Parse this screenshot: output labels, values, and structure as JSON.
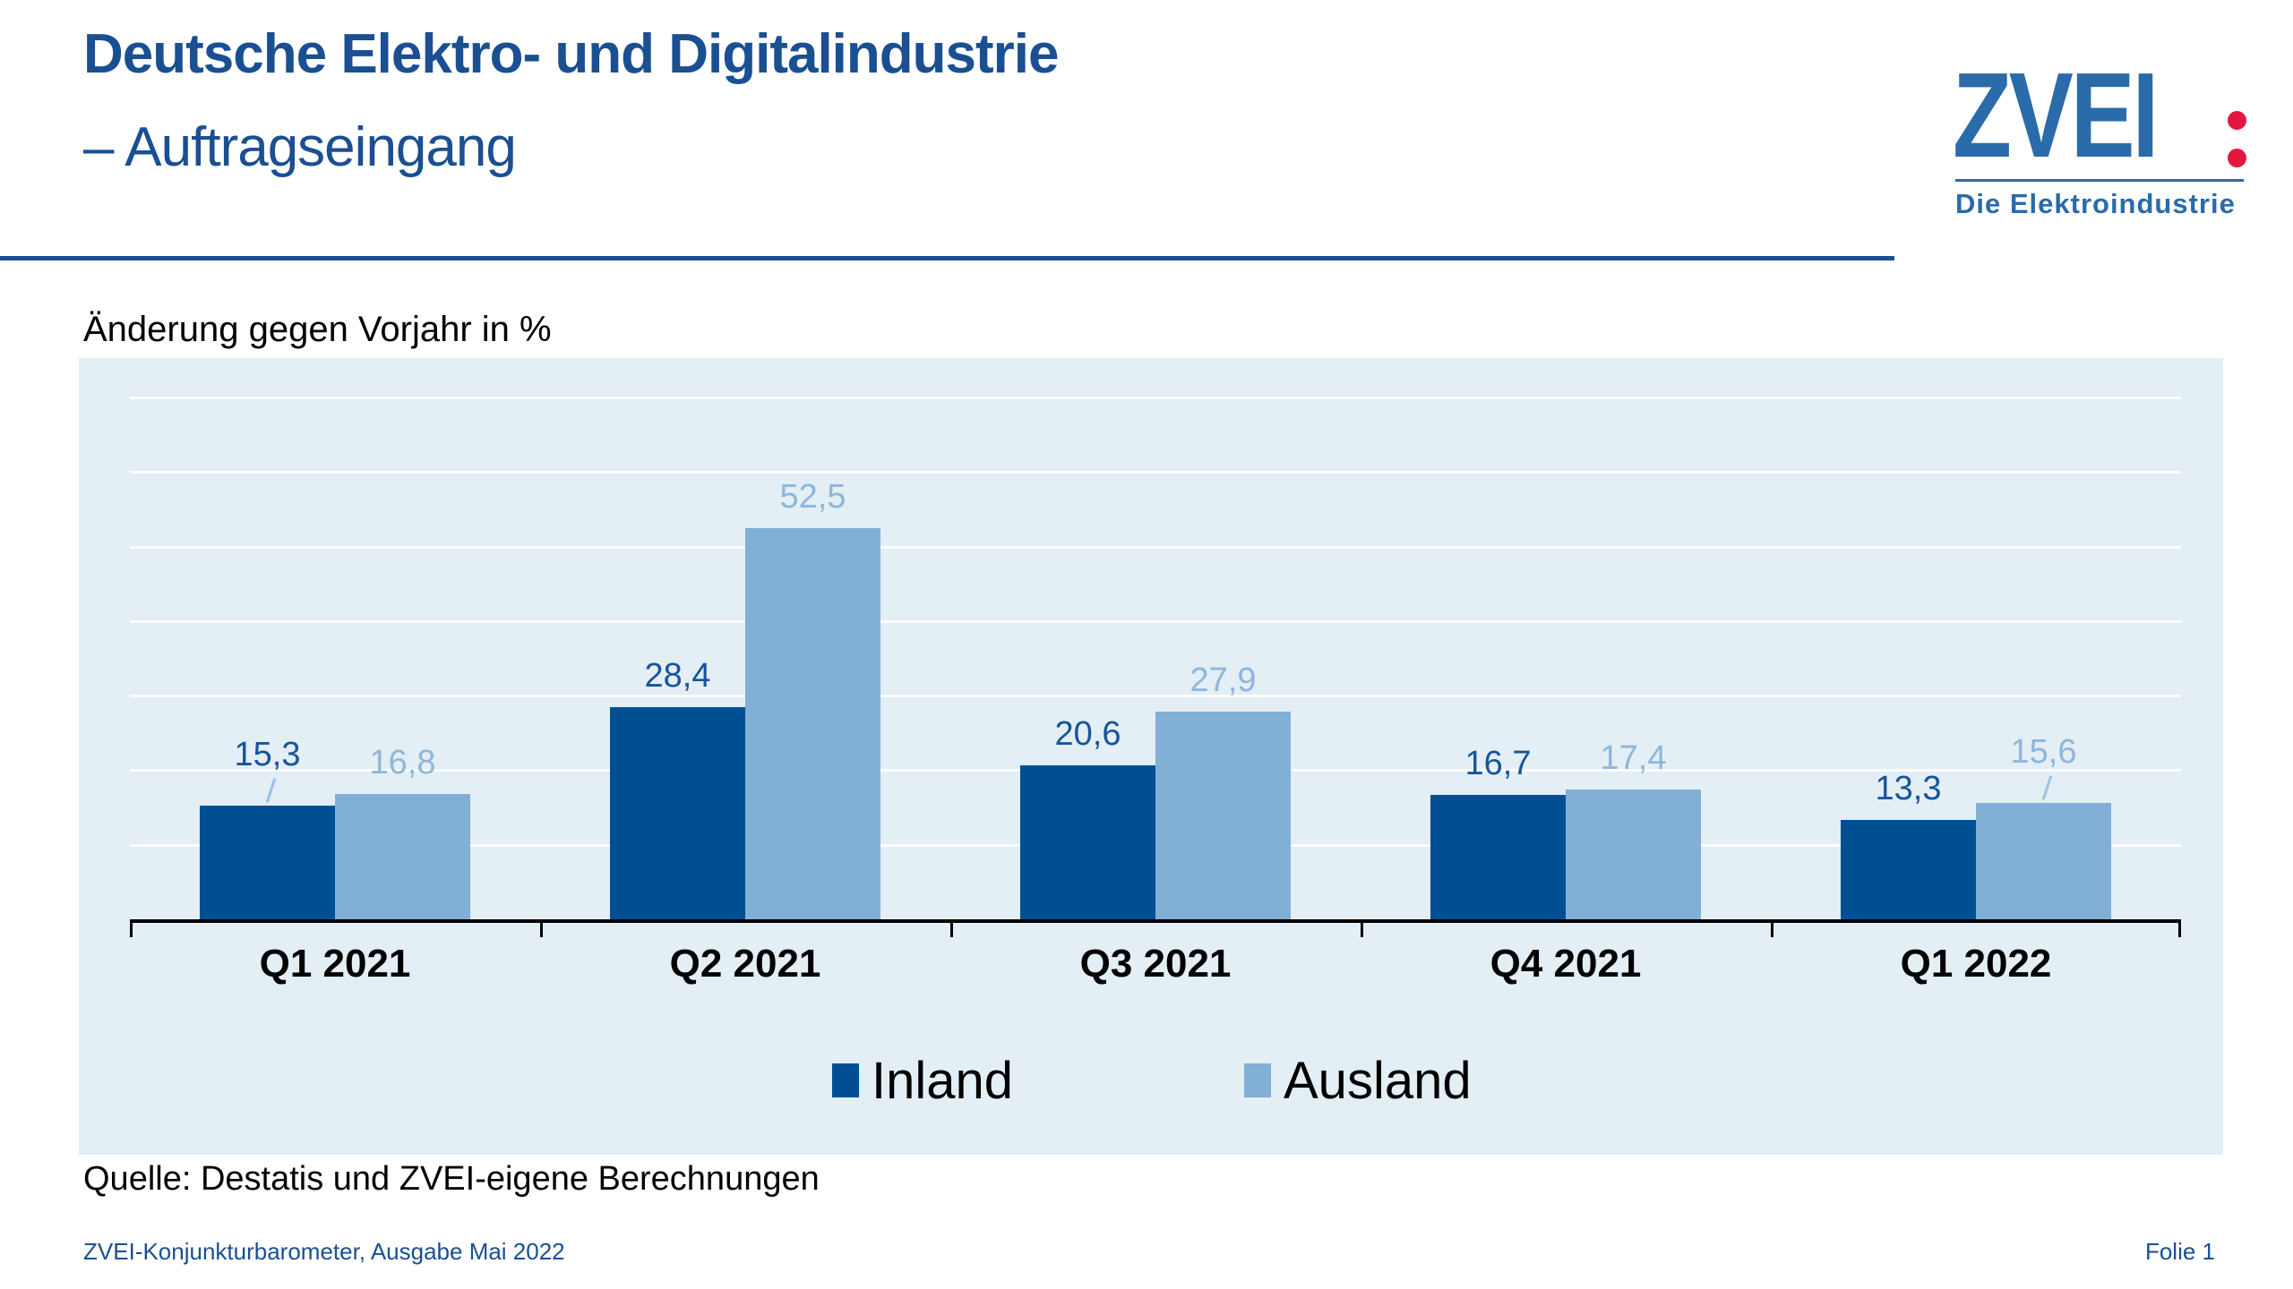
{
  "slide": {
    "title_line1": "Deutsche Elektro- und Digitalindustrie",
    "title_line2": "– Auftragseingang",
    "subtitle": "Änderung gegen Vorjahr in %",
    "source": "Quelle: Destatis und ZVEI-eigene Berechnungen",
    "footer_left": "ZVEI-Konjunkturbarometer, Ausgabe Mai 2022",
    "footer_right": "Folie 1"
  },
  "logo": {
    "wordmark": "ZVEI",
    "tagline": "Die Elektroindustrie",
    "blue": "#2A6BA9",
    "red": "#E2173D"
  },
  "colors": {
    "title_blue": "#1A4F92",
    "chart_background": "#E3EEF5",
    "gridline": "#FFFFFF",
    "axis": "#000000",
    "leader_line": "#9CC2E5"
  },
  "chart_data": {
    "type": "bar",
    "title": "Änderung gegen Vorjahr in %",
    "categories": [
      "Q1 2021",
      "Q2 2021",
      "Q3 2021",
      "Q4 2021",
      "Q1 2022"
    ],
    "series": [
      {
        "name": "Inland",
        "color": "#004F93",
        "label_color": "#17549A",
        "values": [
          15.3,
          28.4,
          20.6,
          16.7,
          13.3
        ]
      },
      {
        "name": "Ausland",
        "color": "#82AFD6",
        "label_color": "#8FB6DA",
        "values": [
          16.8,
          52.5,
          27.9,
          17.4,
          15.6
        ]
      }
    ],
    "value_format": "decimal-comma-1",
    "data_labels": true,
    "leader_lines": [
      {
        "series": 0,
        "index": 0
      },
      {
        "series": 1,
        "index": 4
      }
    ],
    "ylim": [
      0,
      75
    ],
    "grid_step": 10,
    "grid_on": true,
    "legend_position": "bottom",
    "xlabel": "",
    "ylabel": ""
  }
}
